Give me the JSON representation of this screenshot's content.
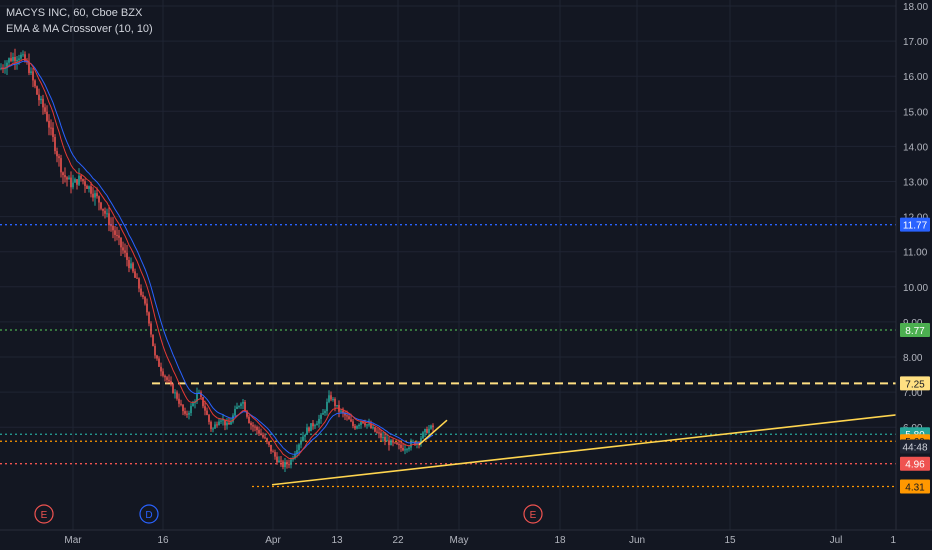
{
  "header": {
    "symbol_line": "MACYS INC, 60, Cboe BZX",
    "indicator_line": "EMA & MA Crossover (10, 10)"
  },
  "colors": {
    "background": "#131722",
    "grid": "#1f2433",
    "axis_text": "#b2b5be",
    "candle_up": "#26a69a",
    "candle_down": "#ef5350",
    "ema_line": "#e53935",
    "ma_line": "#2962ff",
    "trendline": "#ffd54f",
    "resistance_dashed": "#ffe082"
  },
  "chart_data": {
    "type": "candlestick",
    "title": "MACYS INC, 60, Cboe BZX",
    "series": [
      {
        "name": "EMA & MA Crossover (10, 10)"
      }
    ],
    "ylim": [
      3.5,
      18.0
    ],
    "y_ticks": [
      18.0,
      17.0,
      16.0,
      15.0,
      14.0,
      13.0,
      12.0,
      11.0,
      10.0,
      9.0,
      8.0,
      7.0,
      6.0
    ],
    "y_tick_labels": [
      "18.00",
      "17.00",
      "16.00",
      "15.00",
      "14.00",
      "13.00",
      "12.00",
      "11.00",
      "10.00",
      "9.00",
      "8.00",
      "7.00",
      "6.00"
    ],
    "x_tick_labels": [
      "Mar",
      "16",
      "Apr",
      "13",
      "22",
      "May",
      "18",
      "Jun",
      "15",
      "Jul",
      "1"
    ],
    "earnings_markers": [
      "E",
      "D",
      "E"
    ],
    "price_path": [
      [
        0,
        16.2
      ],
      [
        10,
        16.5
      ],
      [
        20,
        16.6
      ],
      [
        28,
        16.3
      ],
      [
        38,
        15.4
      ],
      [
        45,
        15.0
      ],
      [
        55,
        14.0
      ],
      [
        63,
        13.2
      ],
      [
        72,
        12.9
      ],
      [
        80,
        13.1
      ],
      [
        90,
        12.8
      ],
      [
        100,
        12.4
      ],
      [
        110,
        11.8
      ],
      [
        120,
        11.2
      ],
      [
        130,
        10.6
      ],
      [
        140,
        9.9
      ],
      [
        148,
        9.2
      ],
      [
        155,
        8.0
      ],
      [
        162,
        7.6
      ],
      [
        170,
        7.2
      ],
      [
        178,
        6.8
      ],
      [
        185,
        6.3
      ],
      [
        192,
        6.6
      ],
      [
        198,
        7.0
      ],
      [
        205,
        6.5
      ],
      [
        212,
        5.9
      ],
      [
        220,
        6.3
      ],
      [
        228,
        6.0
      ],
      [
        236,
        6.5
      ],
      [
        242,
        6.8
      ],
      [
        250,
        6.1
      ],
      [
        258,
        5.9
      ],
      [
        266,
        5.6
      ],
      [
        274,
        5.2
      ],
      [
        282,
        4.9
      ],
      [
        290,
        5.0
      ],
      [
        298,
        5.5
      ],
      [
        306,
        5.9
      ],
      [
        314,
        6.1
      ],
      [
        322,
        6.3
      ],
      [
        330,
        6.9
      ],
      [
        338,
        6.5
      ],
      [
        346,
        6.3
      ],
      [
        354,
        6.0
      ],
      [
        362,
        6.2
      ],
      [
        370,
        6.0
      ],
      [
        378,
        5.8
      ],
      [
        386,
        5.6
      ],
      [
        394,
        5.5
      ],
      [
        402,
        5.4
      ],
      [
        410,
        5.5
      ],
      [
        418,
        5.6
      ],
      [
        426,
        5.9
      ],
      [
        433,
        6.0
      ]
    ],
    "horizontal_levels": [
      {
        "label": "11.77",
        "value": 11.77,
        "style": "dotted",
        "color": "#2962ff",
        "label_bg": "#2962ff",
        "label_color": "#ffffff"
      },
      {
        "label": "8.77",
        "value": 8.77,
        "style": "dotted",
        "color": "#4caf50",
        "label_bg": "#4caf50",
        "label_color": "#ffffff"
      },
      {
        "label": "7.25",
        "value": 7.25,
        "style": "dashed",
        "color": "#ffe082",
        "label_bg": "#ffe082",
        "label_color": "#131722"
      },
      {
        "label": "5.80",
        "value": 5.8,
        "style": "dotted",
        "color": "#26a69a",
        "label_bg": "#26a69a",
        "label_color": "#ffffff"
      },
      {
        "label": "5.60",
        "value": 5.6,
        "style": "dotted",
        "color": "#ff9800",
        "label_bg": "#ff9800",
        "label_color": "#131722"
      },
      {
        "label": "4.96",
        "value": 4.96,
        "style": "dotted",
        "color": "#ef5350",
        "label_bg": "#ef5350",
        "label_color": "#ffffff"
      },
      {
        "label": "4.31",
        "value": 4.31,
        "style": "dotted",
        "color": "#ff9800",
        "label_bg": "#ff9800",
        "label_color": "#131722"
      }
    ],
    "countdown_label": {
      "label": "44:48",
      "value": 5.45,
      "label_bg": "#1e2433",
      "label_color": "#d1d4dc"
    },
    "trendlines": [
      {
        "from": [
          4.36,
          0.0
        ],
        "to": [
          6.35,
          1.0
        ]
      },
      {
        "from": [
          5.5,
          0.0
        ],
        "to": [
          6.2,
          1.0
        ]
      }
    ]
  }
}
